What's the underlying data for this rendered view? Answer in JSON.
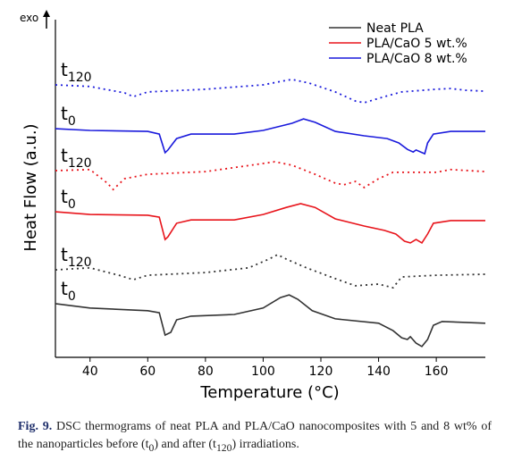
{
  "chart_data": {
    "type": "line",
    "exo_label": "exo",
    "xlabel": "Temperature (°C)",
    "ylabel": "Heat Flow (a.u.)",
    "xlim": [
      28,
      177
    ],
    "ylim": [
      0,
      100
    ],
    "xticks": [
      40,
      60,
      80,
      100,
      120,
      140,
      160
    ],
    "legend": "upper right",
    "series": [
      {
        "name": "Neat PLA",
        "color": "#333333",
        "linestyle": "solid",
        "label": {
          "text": "t",
          "sub": "0"
        },
        "x": [
          28,
          40,
          60,
          64,
          66,
          68,
          70,
          75,
          90,
          100,
          106,
          109,
          112,
          117,
          125,
          140,
          145,
          148,
          150,
          151,
          153,
          155,
          157,
          159,
          162,
          177
        ],
        "values": [
          15.9,
          14.6,
          13.8,
          13.2,
          6.6,
          7.4,
          11.1,
          12.2,
          12.7,
          14.6,
          17.7,
          18.5,
          17.2,
          13.8,
          11.4,
          10.1,
          7.9,
          5.8,
          5.3,
          6.1,
          4.2,
          3.2,
          5.3,
          9.5,
          10.6,
          10.1
        ]
      },
      {
        "name": "Neat PLA",
        "color": "#333333",
        "linestyle": "dotted",
        "label": {
          "text": "t",
          "sub": "120"
        },
        "x": [
          28,
          40,
          50,
          55,
          60,
          80,
          95,
          102,
          105,
          108,
          115,
          125,
          132,
          140,
          145,
          148,
          160,
          177
        ],
        "values": [
          25.9,
          26.5,
          24.3,
          23.0,
          24.3,
          25.1,
          26.5,
          29.1,
          30.4,
          29.1,
          26.5,
          23.3,
          21.2,
          21.7,
          20.6,
          23.8,
          24.3,
          24.6
        ]
      },
      {
        "name": "PLA/CaO 5 wt.%",
        "color": "#e8141b",
        "linestyle": "solid",
        "label": {
          "text": "t",
          "sub": "0"
        },
        "x": [
          28,
          40,
          60,
          64,
          66,
          67,
          70,
          75,
          90,
          100,
          108,
          113,
          118,
          125,
          135,
          142,
          146,
          149,
          151,
          153,
          155,
          157,
          159,
          165,
          177
        ],
        "values": [
          43.1,
          42.3,
          42.1,
          41.5,
          34.9,
          35.7,
          39.7,
          40.7,
          40.7,
          42.3,
          44.4,
          45.5,
          44.4,
          41.0,
          38.9,
          37.6,
          36.5,
          34.4,
          33.9,
          34.9,
          33.9,
          36.5,
          39.7,
          40.5,
          40.5
        ]
      },
      {
        "name": "PLA/CaO 5 wt.%",
        "color": "#e8141b",
        "linestyle": "dotted",
        "label": {
          "text": "t",
          "sub": "120"
        },
        "x": [
          28,
          40,
          46,
          48,
          52,
          60,
          80,
          100,
          104,
          110,
          118,
          125,
          128,
          132,
          135,
          140,
          145,
          160,
          165,
          177
        ],
        "values": [
          55.3,
          55.6,
          51.6,
          49.7,
          52.9,
          54.2,
          55.0,
          57.4,
          57.9,
          56.9,
          54.2,
          51.6,
          51.1,
          52.1,
          50.3,
          52.9,
          54.8,
          54.8,
          55.6,
          55.0
        ]
      },
      {
        "name": "PLA/CaO 8 wt.%",
        "color": "#1a1adc",
        "linestyle": "solid",
        "label": {
          "text": "t",
          "sub": "0"
        },
        "x": [
          28,
          40,
          60,
          64,
          66,
          67,
          70,
          75,
          90,
          100,
          110,
          114,
          118,
          125,
          135,
          143,
          147,
          150,
          152,
          153,
          156,
          157,
          159,
          165,
          177
        ],
        "values": [
          67.7,
          67.2,
          66.9,
          66.1,
          60.6,
          61.4,
          64.8,
          66.1,
          66.1,
          67.2,
          69.3,
          70.6,
          69.6,
          66.9,
          65.6,
          64.8,
          63.5,
          61.6,
          60.8,
          61.4,
          60.3,
          63.5,
          66.1,
          66.9,
          66.9
        ]
      },
      {
        "name": "PLA/CaO 8 wt.%",
        "color": "#1a1adc",
        "linestyle": "dotted",
        "label": {
          "text": "t",
          "sub": "120"
        },
        "x": [
          28,
          40,
          52,
          55,
          60,
          80,
          100,
          108,
          110,
          116,
          125,
          132,
          135,
          142,
          148,
          160,
          165,
          170,
          177
        ],
        "values": [
          80.7,
          80.2,
          78.3,
          77.2,
          78.6,
          79.4,
          80.7,
          82.0,
          82.3,
          81.2,
          78.6,
          75.9,
          75.4,
          77.2,
          78.6,
          79.4,
          79.6,
          79.1,
          78.8
        ]
      }
    ]
  },
  "caption": {
    "label": "Fig. 9.",
    "text": "DSC thermograms of neat PLA and PLA/CaO nanocomposites with 5 and 8 wt% of the nanoparticles before (t",
    "sub1": "0",
    "mid": ") and after (t",
    "sub2": "120",
    "end": ") irradiations."
  }
}
